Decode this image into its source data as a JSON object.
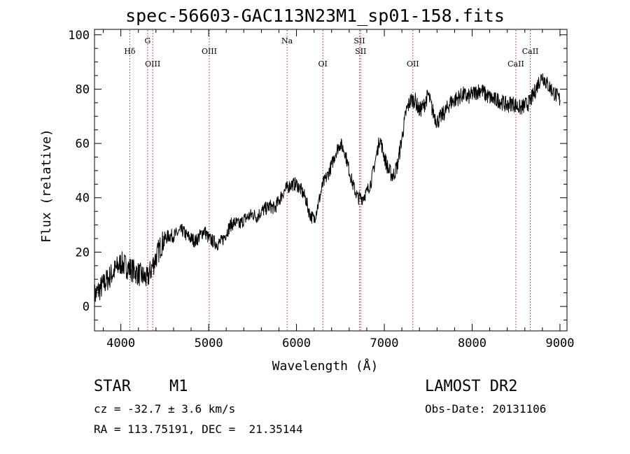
{
  "title": "spec-56603-GAC113N23M1_sp01-158.fits",
  "footer": {
    "class": "STAR",
    "subclass": "M1",
    "redshift": "cz = -32.7 ± 3.6 km/s",
    "coords": "RA = 113.75191, DEC =  21.35144",
    "survey": "LAMOST DR2",
    "obsdate": "Obs-Date: 20131106"
  },
  "chart_data": {
    "type": "line",
    "title": "spec-56603-GAC113N23M1_sp01-158.fits",
    "xlabel": "Wavelength (Å)",
    "ylabel": "Flux (relative)",
    "xlim": [
      3700,
      9080
    ],
    "ylim": [
      -9,
      102
    ],
    "xticks": [
      4000,
      5000,
      6000,
      7000,
      8000,
      9000
    ],
    "yticks": [
      0,
      20,
      40,
      60,
      80,
      100
    ],
    "grid": false,
    "line_color": "#000000",
    "marker_color": "#b22222",
    "lines": [
      {
        "label": "Hδ",
        "x": 4102,
        "row": 1
      },
      {
        "label": "G",
        "x": 4305,
        "row": 0
      },
      {
        "label": "OIII",
        "x": 4363,
        "row": 2
      },
      {
        "label": "OIII",
        "x": 5007,
        "row": 1
      },
      {
        "label": "Na",
        "x": 5893,
        "row": 0
      },
      {
        "label": "OI",
        "x": 6300,
        "row": 2
      },
      {
        "label": "SII",
        "x": 6717,
        "row": 0
      },
      {
        "label": "SII",
        "x": 6731,
        "row": 1
      },
      {
        "label": "OII",
        "x": 7325,
        "row": 2
      },
      {
        "label": "CaII",
        "x": 8498,
        "row": 2
      },
      {
        "label": "CaII",
        "x": 8662,
        "row": 1
      }
    ],
    "series": [
      {
        "x": [
          3700,
          3750,
          3800,
          3850,
          3900,
          3950,
          4000,
          4050,
          4100,
          4150,
          4200,
          4250,
          4300,
          4350,
          4400,
          4450,
          4500,
          4550,
          4600,
          4650,
          4700,
          4750,
          4800,
          4850,
          4900,
          4950,
          5000,
          5050,
          5100,
          5150,
          5200,
          5250,
          5300,
          5350,
          5400,
          5450,
          5500,
          5550,
          5600,
          5650,
          5700,
          5750,
          5800,
          5850,
          5900,
          5950,
          6000,
          6050,
          6100,
          6150,
          6200,
          6250,
          6300,
          6350,
          6400,
          6450,
          6500,
          6550,
          6600,
          6650,
          6700,
          6750,
          6800,
          6850,
          6900,
          6950,
          7000,
          7050,
          7100,
          7150,
          7200,
          7250,
          7300,
          7350,
          7400,
          7450,
          7500,
          7550,
          7600,
          7650,
          7700,
          7750,
          7800,
          7850,
          7900,
          7950,
          8000,
          8050,
          8100,
          8150,
          8200,
          8250,
          8300,
          8350,
          8400,
          8450,
          8500,
          8550,
          8600,
          8650,
          8700,
          8750,
          8800,
          8850,
          8900,
          8950,
          9000
        ],
        "y": [
          4,
          6,
          8,
          10,
          12,
          14,
          16,
          15,
          14,
          13,
          12,
          11,
          10,
          14,
          18,
          22,
          25,
          26,
          26,
          27,
          28,
          26,
          25,
          24,
          26,
          28,
          25,
          24,
          23,
          24,
          27,
          30,
          31,
          30,
          32,
          33,
          34,
          33,
          35,
          36,
          37,
          36,
          39,
          42,
          44,
          45,
          45,
          43,
          40,
          34,
          32,
          38,
          45,
          48,
          52,
          57,
          60,
          57,
          50,
          44,
          40,
          40,
          42,
          46,
          54,
          62,
          55,
          50,
          48,
          52,
          62,
          72,
          76,
          76,
          72,
          74,
          78,
          72,
          68,
          70,
          72,
          75,
          76,
          77,
          78,
          77,
          78,
          79,
          80,
          78,
          77,
          76,
          76,
          75,
          74,
          75,
          74,
          73,
          74,
          75,
          78,
          82,
          85,
          82,
          80,
          78,
          76
        ]
      }
    ]
  }
}
